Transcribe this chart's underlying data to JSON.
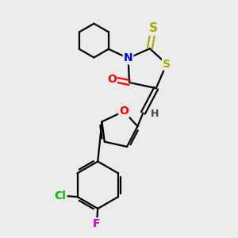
{
  "background_color": "#ebebeb",
  "atom_colors": {
    "C": "#000000",
    "N": "#0000ff",
    "O": "#ff0000",
    "S": "#aaaa00",
    "Cl": "#00bb00",
    "F": "#cc00cc",
    "H": "#444444"
  },
  "bond_color": "#000000",
  "bond_width": 1.6,
  "fig_width": 3.0,
  "fig_height": 3.0,
  "font_size": 10
}
